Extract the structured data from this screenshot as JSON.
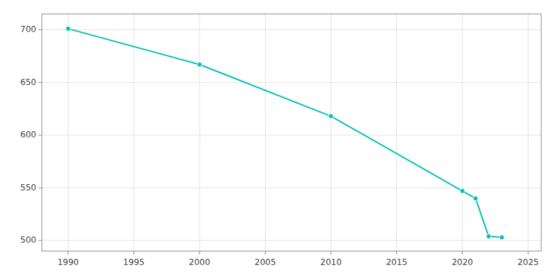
{
  "chart_data": {
    "type": "line",
    "x": [
      1990,
      2000,
      2010,
      2020,
      2021,
      2022,
      2023
    ],
    "values": [
      701,
      667,
      618,
      547,
      540,
      504,
      503
    ],
    "color": "#00BFBF",
    "marker": "circle",
    "xlim": [
      1988,
      2026
    ],
    "ylim": [
      490,
      715
    ],
    "xticks": [
      1990,
      1995,
      2000,
      2005,
      2010,
      2015,
      2020,
      2025
    ],
    "yticks": [
      500,
      550,
      600,
      650,
      700
    ],
    "grid": true
  }
}
